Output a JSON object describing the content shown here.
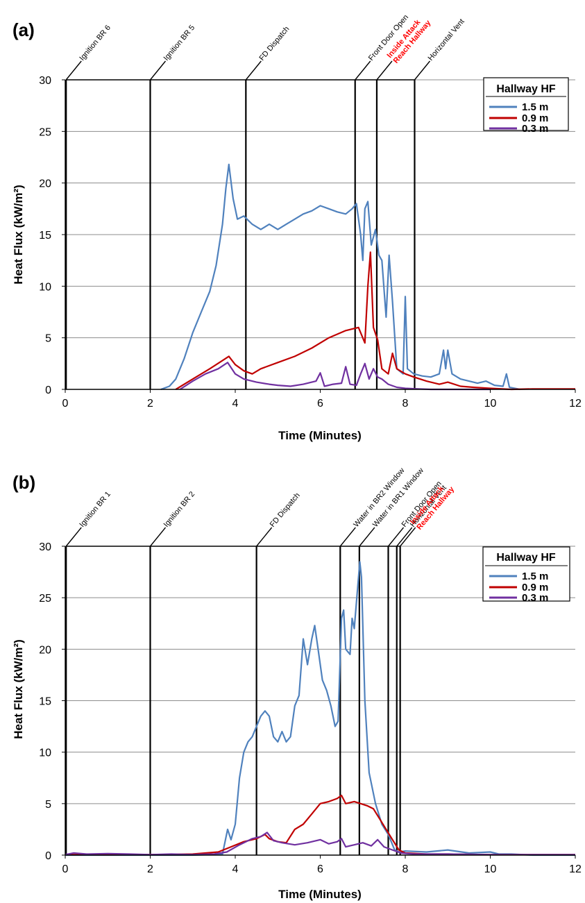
{
  "figure": {
    "colors": {
      "s15": "#4f81bd",
      "s09": "#c00000",
      "s03": "#7030a0",
      "grid": "#8c8c8c",
      "event": "#000000",
      "event_red": "#ff0000"
    }
  },
  "chart_data": [
    {
      "panel": "(a)",
      "type": "line",
      "xlabel": "Time (Minutes)",
      "ylabel": "Heat Flux (kW/m²)",
      "xlim": [
        0,
        12
      ],
      "ylim": [
        0,
        30
      ],
      "xticks": [
        0,
        2,
        4,
        6,
        8,
        10,
        12
      ],
      "yticks": [
        0,
        5,
        10,
        15,
        20,
        25,
        30
      ],
      "grid": "horizontal",
      "legend": {
        "title": "Hallway HF",
        "placement": "top-right"
      },
      "events": [
        {
          "x": 0.02,
          "lines": [
            "Ignition BR 6"
          ],
          "red": false
        },
        {
          "x": 2.0,
          "lines": [
            "Ignition BR 5"
          ],
          "red": false
        },
        {
          "x": 4.25,
          "lines": [
            "FD Dispatch"
          ],
          "red": false
        },
        {
          "x": 6.82,
          "lines": [
            "Front Door Open"
          ],
          "red": false
        },
        {
          "x": 7.33,
          "lines": [
            "Inside Attack",
            "Reach Hallway"
          ],
          "red": true
        },
        {
          "x": 8.22,
          "lines": [
            "Horizontal Vent"
          ],
          "red": false
        }
      ],
      "series": [
        {
          "name": "1.5 m",
          "color": "#4f81bd",
          "x": [
            2.25,
            2.45,
            2.6,
            2.8,
            3.0,
            3.2,
            3.4,
            3.55,
            3.7,
            3.78,
            3.85,
            3.95,
            4.05,
            4.2,
            4.4,
            4.6,
            4.8,
            5.0,
            5.2,
            5.4,
            5.6,
            5.8,
            6.0,
            6.2,
            6.4,
            6.6,
            6.75,
            6.85,
            6.95,
            7.0,
            7.05,
            7.12,
            7.2,
            7.3,
            7.38,
            7.45,
            7.55,
            7.62,
            7.7,
            7.8,
            7.95,
            8.0,
            8.05,
            8.2,
            8.4,
            8.6,
            8.8,
            8.9,
            8.95,
            9.0,
            9.1,
            9.3,
            9.5,
            9.7,
            9.9,
            10.1,
            10.3,
            10.38,
            10.45,
            10.7
          ],
          "y": [
            0.0,
            0.3,
            1.0,
            3.0,
            5.5,
            7.5,
            9.5,
            12.0,
            16.0,
            19.5,
            21.8,
            18.5,
            16.5,
            16.8,
            16.0,
            15.5,
            16.0,
            15.5,
            16.0,
            16.5,
            17.0,
            17.3,
            17.8,
            17.5,
            17.2,
            17.0,
            17.5,
            18.0,
            15.0,
            12.5,
            17.5,
            18.2,
            14.0,
            15.5,
            13.0,
            12.5,
            7.0,
            13.0,
            8.5,
            2.0,
            1.5,
            9.0,
            2.0,
            1.5,
            1.3,
            1.2,
            1.5,
            3.8,
            2.0,
            3.8,
            1.5,
            1.0,
            0.8,
            0.6,
            0.8,
            0.4,
            0.3,
            1.5,
            0.2,
            0.0
          ]
        },
        {
          "name": "0.9 m",
          "color": "#c00000",
          "x": [
            2.6,
            3.0,
            3.4,
            3.7,
            3.85,
            4.0,
            4.2,
            4.4,
            4.6,
            5.0,
            5.4,
            5.8,
            6.2,
            6.6,
            6.9,
            7.05,
            7.12,
            7.18,
            7.25,
            7.35,
            7.45,
            7.6,
            7.7,
            7.8,
            8.0,
            8.2,
            8.5,
            8.8,
            9.0,
            9.3,
            9.6,
            10.0,
            10.5,
            11.0,
            12.0
          ],
          "y": [
            0.0,
            1.0,
            2.0,
            2.8,
            3.2,
            2.4,
            1.8,
            1.5,
            2.0,
            2.6,
            3.2,
            4.0,
            5.0,
            5.7,
            6.0,
            4.5,
            10.0,
            13.3,
            6.0,
            4.8,
            2.0,
            1.5,
            3.5,
            2.0,
            1.5,
            1.2,
            0.8,
            0.5,
            0.7,
            0.3,
            0.2,
            0.1,
            0.0,
            0.05,
            0.05
          ]
        },
        {
          "name": "0.3 m",
          "color": "#7030a0",
          "x": [
            2.7,
            3.0,
            3.3,
            3.6,
            3.82,
            4.0,
            4.2,
            4.5,
            4.8,
            5.0,
            5.3,
            5.6,
            5.9,
            6.0,
            6.1,
            6.3,
            6.5,
            6.6,
            6.7,
            6.85,
            6.95,
            7.05,
            7.15,
            7.25,
            7.35,
            7.45,
            7.6,
            7.8,
            8.0,
            8.3,
            8.6,
            9.0,
            9.5,
            10.0
          ],
          "y": [
            0.0,
            0.8,
            1.5,
            2.0,
            2.6,
            1.5,
            1.0,
            0.7,
            0.5,
            0.4,
            0.3,
            0.5,
            0.8,
            1.6,
            0.3,
            0.5,
            0.6,
            2.2,
            0.5,
            0.4,
            1.5,
            2.5,
            1.0,
            2.0,
            1.2,
            1.0,
            0.5,
            0.2,
            0.1,
            0.05,
            0.0,
            0.0,
            0.0,
            0.0
          ]
        }
      ]
    },
    {
      "panel": "(b)",
      "type": "line",
      "xlabel": "Time (Minutes)",
      "ylabel": "Heat Flux (kW/m²)",
      "xlim": [
        0,
        12
      ],
      "ylim": [
        0,
        30
      ],
      "xticks": [
        0,
        2,
        4,
        6,
        8,
        10,
        12
      ],
      "yticks": [
        0,
        5,
        10,
        15,
        20,
        25,
        30
      ],
      "grid": "horizontal",
      "legend": {
        "title": "Hallway HF",
        "placement": "top-right"
      },
      "events": [
        {
          "x": 0.02,
          "lines": [
            "Ignition BR 1"
          ],
          "red": false
        },
        {
          "x": 2.0,
          "lines": [
            "Ignition BR 2"
          ],
          "red": false
        },
        {
          "x": 4.5,
          "lines": [
            "FD Dispatch"
          ],
          "red": false
        },
        {
          "x": 6.47,
          "lines": [
            "Water in BR2 Window"
          ],
          "red": false
        },
        {
          "x": 6.92,
          "lines": [
            "Water in BR1 Window"
          ],
          "red": false
        },
        {
          "x": 7.6,
          "lines": [
            "Front Door Open"
          ],
          "red": false
        },
        {
          "x": 7.8,
          "lines": [
            "Horizontal Vent"
          ],
          "red": false
        },
        {
          "x": 7.88,
          "lines": [
            "Inside Attack",
            "Reach Hallway"
          ],
          "red": true
        }
      ],
      "series": [
        {
          "name": "1.5 m",
          "color": "#4f81bd",
          "x": [
            0,
            1,
            2,
            3,
            3.7,
            3.82,
            3.9,
            4.0,
            4.1,
            4.2,
            4.3,
            4.4,
            4.5,
            4.6,
            4.7,
            4.8,
            4.9,
            5.0,
            5.1,
            5.2,
            5.3,
            5.4,
            5.5,
            5.6,
            5.7,
            5.8,
            5.87,
            5.95,
            6.05,
            6.15,
            6.25,
            6.35,
            6.42,
            6.5,
            6.55,
            6.6,
            6.7,
            6.75,
            6.8,
            6.88,
            6.93,
            6.97,
            7.05,
            7.15,
            7.3,
            7.45,
            7.6,
            7.75,
            7.85,
            8.0,
            8.5,
            9.0,
            9.5,
            10.0,
            10.2,
            10.5,
            11.0,
            12.0
          ],
          "y": [
            0,
            0,
            0,
            0,
            0.1,
            2.5,
            1.5,
            3.0,
            7.5,
            10.0,
            11.0,
            11.5,
            12.5,
            13.5,
            14.0,
            13.5,
            11.5,
            11.0,
            12.0,
            11.0,
            11.5,
            14.5,
            15.5,
            21.0,
            18.5,
            21.0,
            22.3,
            20.0,
            17.0,
            16.0,
            14.5,
            12.5,
            13.0,
            23.0,
            23.8,
            20.0,
            19.5,
            23.0,
            22.0,
            26.0,
            28.5,
            27.0,
            15.0,
            8.0,
            5.0,
            3.0,
            2.0,
            0.5,
            0.3,
            0.4,
            0.3,
            0.5,
            0.2,
            0.3,
            0.1,
            0.1,
            0,
            0
          ]
        },
        {
          "name": "0.9 m",
          "color": "#c00000",
          "x": [
            0,
            1,
            2,
            3,
            3.6,
            3.9,
            4.2,
            4.5,
            4.7,
            4.8,
            5.0,
            5.2,
            5.4,
            5.6,
            5.8,
            6.0,
            6.2,
            6.4,
            6.5,
            6.6,
            6.8,
            6.95,
            7.1,
            7.25,
            7.4,
            7.55,
            7.7,
            7.85,
            8.0,
            8.5,
            9.0,
            10.0,
            11.0,
            12.0
          ],
          "y": [
            0.05,
            0.05,
            0.05,
            0.1,
            0.3,
            0.8,
            1.3,
            1.6,
            2.0,
            1.6,
            1.3,
            1.2,
            2.5,
            3.0,
            4.0,
            5.0,
            5.2,
            5.5,
            5.8,
            5.0,
            5.2,
            5.0,
            4.8,
            4.5,
            3.5,
            2.5,
            1.5,
            0.5,
            0.2,
            0.1,
            0.1,
            0.05,
            0.05,
            0.05
          ]
        },
        {
          "name": "0.3 m",
          "color": "#7030a0",
          "x": [
            0,
            0.2,
            0.5,
            1.0,
            1.5,
            2.0,
            2.5,
            3.0,
            3.5,
            3.8,
            4.1,
            4.4,
            4.6,
            4.75,
            4.9,
            5.1,
            5.4,
            5.7,
            6.0,
            6.2,
            6.4,
            6.5,
            6.6,
            6.8,
            7.0,
            7.2,
            7.35,
            7.5,
            7.7,
            7.9,
            8.2,
            9.0,
            10.0,
            11.0,
            12.0
          ],
          "y": [
            0.05,
            0.2,
            0.1,
            0.15,
            0.1,
            0.05,
            0.1,
            0.05,
            0.1,
            0.3,
            1.0,
            1.6,
            1.8,
            2.2,
            1.4,
            1.2,
            1.0,
            1.2,
            1.5,
            1.1,
            1.3,
            1.6,
            0.8,
            1.0,
            1.2,
            0.9,
            1.5,
            0.8,
            0.5,
            0.2,
            0.1,
            0.1,
            0.05,
            0.05,
            0.05
          ]
        }
      ]
    }
  ]
}
